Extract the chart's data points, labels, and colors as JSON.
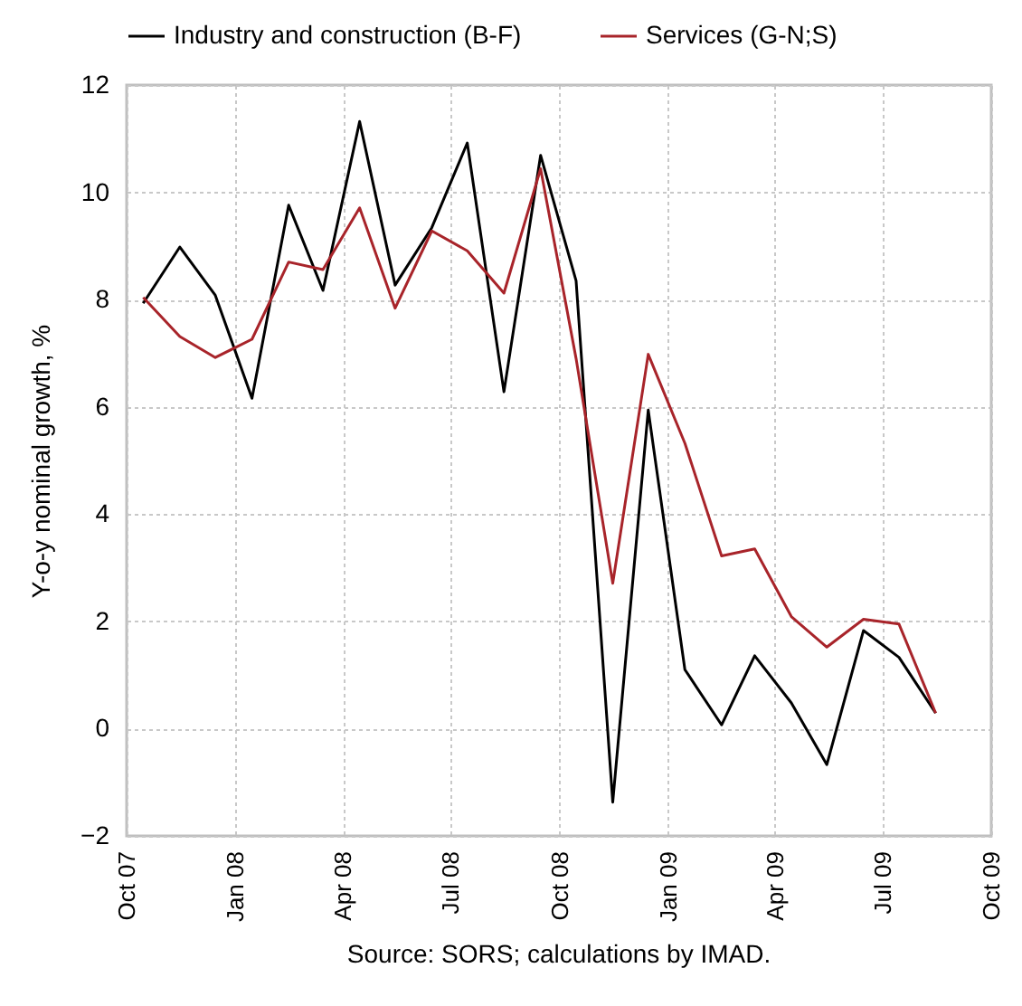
{
  "chart_data": {
    "type": "line",
    "ylabel": "Y-o-y nominal growth, %",
    "annotations": [
      "Source: SORS; calculations by IMAD."
    ],
    "x": [
      "2007-10-15",
      "2007-11-15",
      "2007-12-15",
      "2008-01-15",
      "2008-02-15",
      "2008-03-15",
      "2008-04-15",
      "2008-05-15",
      "2008-06-15",
      "2008-07-15",
      "2008-08-15",
      "2008-09-15",
      "2008-10-15",
      "2008-11-15",
      "2008-12-15",
      "2009-01-15",
      "2009-02-15",
      "2009-03-15",
      "2009-04-15",
      "2009-05-15",
      "2009-06-15",
      "2009-07-15",
      "2009-08-15"
    ],
    "series": [
      {
        "name": "Industry and construction (B-F)",
        "color": "#000000",
        "values": [
          7.93,
          8.98,
          8.08,
          6.16,
          9.76,
          8.17,
          11.32,
          8.27,
          9.34,
          10.92,
          6.28,
          10.69,
          8.35,
          -1.37,
          5.94,
          1.1,
          0.07,
          1.36,
          0.48,
          -0.67,
          1.83,
          1.33,
          0.29
        ]
      },
      {
        "name": "Services (G-N;S)",
        "color": "#a8242a",
        "values": [
          8.04,
          7.31,
          6.92,
          7.26,
          8.7,
          8.56,
          9.71,
          7.84,
          9.28,
          8.91,
          8.12,
          10.44,
          6.9,
          2.71,
          6.98,
          5.32,
          3.22,
          3.35,
          2.09,
          1.52,
          2.04,
          1.95,
          0.29
        ]
      }
    ],
    "xlim": [
      "2007-10-01",
      "2009-10-01"
    ],
    "xticks": [
      {
        "value": "2007-10-01",
        "label": "Oct 07"
      },
      {
        "value": "2008-01-01",
        "label": "Jan 08"
      },
      {
        "value": "2008-04-01",
        "label": "Apr 08"
      },
      {
        "value": "2008-07-01",
        "label": "Jul 08"
      },
      {
        "value": "2008-10-01",
        "label": "Oct 08"
      },
      {
        "value": "2009-01-01",
        "label": "Jan 09"
      },
      {
        "value": "2009-04-01",
        "label": "Apr 09"
      },
      {
        "value": "2009-07-01",
        "label": "Jul 09"
      },
      {
        "value": "2009-10-01",
        "label": "Oct 09"
      }
    ],
    "ylim": [
      -2,
      12
    ],
    "yticks": [
      -2,
      0,
      2,
      4,
      6,
      8,
      10,
      12
    ],
    "grid": true,
    "legend": "top",
    "line_style": "solid"
  }
}
